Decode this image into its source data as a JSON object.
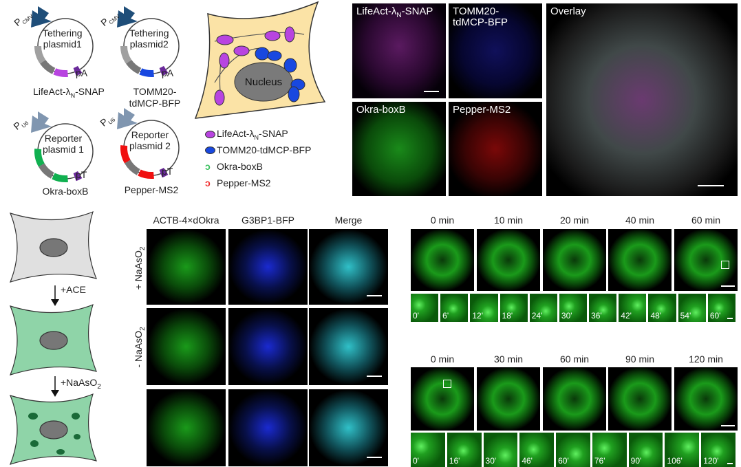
{
  "plasmids": [
    {
      "promoter": "P",
      "promoter_sub": "CMV",
      "name1": "Tethering",
      "name2": "plasmid1",
      "term": "pA",
      "caption": "LifeAct-λN-SNAP",
      "caption_html_main": "LifeAct-λ",
      "caption_sub": "N",
      "caption_tail": "-SNAP",
      "color": "#b844e0",
      "promoter_color": "#1f4e79"
    },
    {
      "promoter": "P",
      "promoter_sub": "CMV",
      "name1": "Tethering",
      "name2": "plasmid2",
      "term": "pA",
      "caption": "TOMM20-tdMCP-BFP",
      "color": "#1848e0",
      "promoter_color": "#1f4e79"
    },
    {
      "promoter": "P",
      "promoter_sub": "U6",
      "name1": "Reporter",
      "name2": "plasmid 1",
      "term": "pT",
      "caption": "Okra-boxB",
      "color": "#10b050",
      "promoter_color": "#8096b0"
    },
    {
      "promoter": "P",
      "promoter_sub": "U6",
      "name1": "Reporter",
      "name2": "plasmid 2",
      "term": "pT",
      "caption": "Pepper-MS2",
      "color": "#f01010",
      "promoter_color": "#8096b0"
    }
  ],
  "cell_diagram": {
    "nucleus": "Nucleus"
  },
  "legend": [
    {
      "label_main": "LifeAct-λ",
      "label_sub": "N",
      "label_tail": "-SNAP",
      "icon": "purple-ellipse",
      "color": "#b844e0"
    },
    {
      "label_main": "TOMM20-tdMCP-BFP",
      "icon": "blue-ellipse",
      "color": "#1848e0"
    },
    {
      "label_main": "Okra-boxB",
      "icon": "green-rna-hairpin",
      "color": "#3cc060"
    },
    {
      "label_main": "Pepper-MS2",
      "icon": "red-rna-hairpin",
      "color": "#f03030"
    }
  ],
  "panels_top": {
    "lifeact": "LifeAct-λ",
    "lifeact_sub": "N",
    "lifeact_tail": "-SNAP",
    "tomm_1": "TOMM20-",
    "tomm_2": "tdMCP-BFP",
    "okra": "Okra-boxB",
    "pepper": "Pepper-MS2",
    "overlay": "Overlay"
  },
  "schematic": {
    "step1": "+ACE",
    "step2_main": "+NaAsO",
    "step2_sub": "2"
  },
  "grid": {
    "columns": [
      "ACTB-4×dOkra",
      "G3BP1-BFP",
      "Merge"
    ],
    "row_plus_main": "+ NaAsO",
    "row_plus_sub": "2",
    "row_minus_main": "- NaAsO",
    "row_minus_sub": "2"
  },
  "series1": {
    "times": [
      "0 min",
      "10 min",
      "20 min",
      "40 min",
      "60 min"
    ],
    "zoom_times": [
      "0'",
      "6'",
      "12'",
      "18'",
      "24'",
      "30'",
      "36'",
      "42'",
      "48'",
      "54'",
      "60'"
    ]
  },
  "series2": {
    "times": [
      "0 min",
      "30 min",
      "60 min",
      "90 min",
      "120 min"
    ],
    "zoom_times": [
      "0'",
      "16'",
      "30'",
      "46'",
      "60'",
      "76'",
      "90'",
      "106'",
      "120'"
    ]
  }
}
